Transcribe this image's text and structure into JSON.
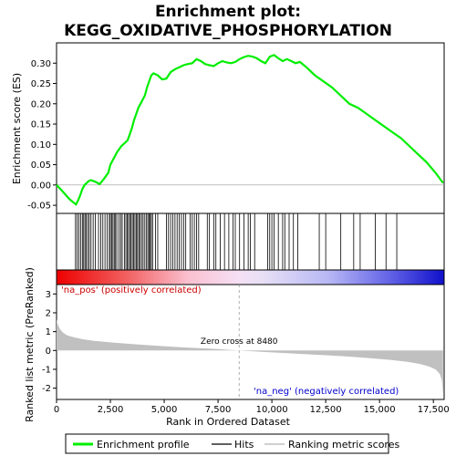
{
  "title_line1": "Enrichment plot:",
  "title_line2": "KEGG_OXIDATIVE_PHOSPHORYLATION",
  "colors": {
    "enrichment_line": "#00ee00",
    "hits": "#000000",
    "ranking_fill": "#c0c0c0",
    "pos_label": "#cc0000",
    "neg_label": "#0000cc",
    "zero_line": "#999999"
  },
  "chart_data": {
    "type": "line",
    "x_range": [
      0,
      18000
    ],
    "xlabel": "Rank in Ordered Dataset",
    "x_ticks": [
      0,
      2500,
      5000,
      7500,
      10000,
      12500,
      15000,
      17500
    ],
    "x_tick_labels": [
      "0",
      "2,500",
      "5,000",
      "7,500",
      "10,000",
      "12,500",
      "15,000",
      "17,500"
    ],
    "es_panel": {
      "ylabel": "Enrichment score (ES)",
      "ylim": [
        -0.07,
        0.35
      ],
      "y_ticks": [
        -0.05,
        0.0,
        0.05,
        0.1,
        0.15,
        0.2,
        0.25,
        0.3
      ],
      "y_tick_labels": [
        "-0.05",
        "0.00",
        "0.05",
        "0.10",
        "0.15",
        "0.20",
        "0.25",
        "0.30"
      ],
      "series": [
        {
          "name": "Enrichment profile",
          "x": [
            0,
            300,
            600,
            900,
            1000,
            1100,
            1200,
            1300,
            1400,
            1500,
            1600,
            1800,
            2000,
            2200,
            2400,
            2500,
            2600,
            2700,
            2800,
            3000,
            3200,
            3300,
            3400,
            3500,
            3600,
            3700,
            3800,
            3900,
            4000,
            4100,
            4200,
            4300,
            4400,
            4500,
            4700,
            4900,
            5100,
            5300,
            5500,
            5700,
            5900,
            6100,
            6300,
            6500,
            6700,
            6900,
            7100,
            7300,
            7500,
            7700,
            7900,
            8100,
            8300,
            8500,
            8700,
            8900,
            9100,
            9300,
            9500,
            9700,
            9900,
            10100,
            10300,
            10500,
            10700,
            10900,
            11100,
            11300,
            11600,
            12000,
            12400,
            12800,
            13200,
            13600,
            14000,
            14400,
            14800,
            15200,
            15600,
            16000,
            16400,
            16800,
            17200,
            17600,
            17950
          ],
          "y": [
            0.0,
            -0.017,
            -0.035,
            -0.048,
            -0.038,
            -0.025,
            -0.01,
            0.0,
            0.005,
            0.01,
            0.012,
            0.008,
            0.002,
            0.015,
            0.03,
            0.05,
            0.06,
            0.07,
            0.08,
            0.095,
            0.105,
            0.11,
            0.125,
            0.14,
            0.16,
            0.175,
            0.19,
            0.2,
            0.21,
            0.22,
            0.24,
            0.255,
            0.27,
            0.275,
            0.27,
            0.26,
            0.262,
            0.278,
            0.285,
            0.29,
            0.295,
            0.298,
            0.3,
            0.31,
            0.305,
            0.298,
            0.295,
            0.293,
            0.3,
            0.305,
            0.302,
            0.3,
            0.303,
            0.31,
            0.315,
            0.318,
            0.316,
            0.312,
            0.305,
            0.3,
            0.316,
            0.32,
            0.312,
            0.305,
            0.31,
            0.305,
            0.3,
            0.303,
            0.29,
            0.27,
            0.255,
            0.24,
            0.22,
            0.2,
            0.19,
            0.175,
            0.16,
            0.145,
            0.13,
            0.115,
            0.095,
            0.075,
            0.055,
            0.03,
            0.005
          ]
        }
      ]
    },
    "hits_panel": {
      "hit_positions": [
        880,
        960,
        1040,
        1120,
        1200,
        1260,
        1320,
        1380,
        1450,
        1520,
        1600,
        1700,
        1800,
        1950,
        2050,
        2150,
        2250,
        2350,
        2450,
        2500,
        2560,
        2620,
        2680,
        2740,
        2800,
        2900,
        2980,
        3050,
        3150,
        3220,
        3280,
        3340,
        3400,
        3460,
        3520,
        3580,
        3640,
        3700,
        3760,
        3820,
        3880,
        3950,
        4020,
        4100,
        4180,
        4240,
        4300,
        4350,
        4400,
        4460,
        4600,
        4700,
        5100,
        5200,
        5300,
        5400,
        5500,
        5600,
        5700,
        5800,
        5900,
        6000,
        6200,
        6300,
        6400,
        6500,
        6600,
        7000,
        7100,
        7300,
        7400,
        7600,
        7800,
        8000,
        8200,
        8300,
        8500,
        8700,
        8900,
        9000,
        9200,
        9800,
        9900,
        10000,
        10100,
        10300,
        10500,
        10600,
        10800,
        11000,
        11200,
        12200,
        12500,
        13200,
        13800,
        14100,
        14800,
        15300,
        15800
      ]
    },
    "ranked_metric_panel": {
      "ylabel": "Ranked list metric (PreRanked)",
      "ylim": [
        -2.6,
        3.5
      ],
      "y_ticks": [
        -2,
        -1,
        0,
        1,
        2,
        3
      ],
      "y_tick_labels": [
        "-2",
        "-1",
        "0",
        "1",
        "2",
        "3"
      ],
      "x": [
        0,
        50,
        150,
        300,
        500,
        800,
        1200,
        1700,
        2500,
        3500,
        4500,
        5500,
        6500,
        7500,
        8480,
        9500,
        10500,
        11500,
        12500,
        13500,
        14500,
        15500,
        16300,
        16900,
        17300,
        17600,
        17800,
        17900,
        17950
      ],
      "y": [
        1.65,
        1.4,
        1.15,
        0.95,
        0.8,
        0.7,
        0.6,
        0.52,
        0.43,
        0.34,
        0.26,
        0.19,
        0.13,
        0.07,
        0.0,
        -0.07,
        -0.13,
        -0.19,
        -0.25,
        -0.32,
        -0.4,
        -0.5,
        -0.6,
        -0.72,
        -0.85,
        -1.0,
        -1.25,
        -1.6,
        -2.35
      ],
      "zero_cross_label": "Zero cross at 8480",
      "zero_cross_x": 8480,
      "pos_label": "'na_pos' (positively correlated)",
      "neg_label": "'na_neg' (negatively correlated)"
    },
    "legend": [
      "Enrichment profile",
      "Hits",
      "Ranking metric scores"
    ]
  }
}
